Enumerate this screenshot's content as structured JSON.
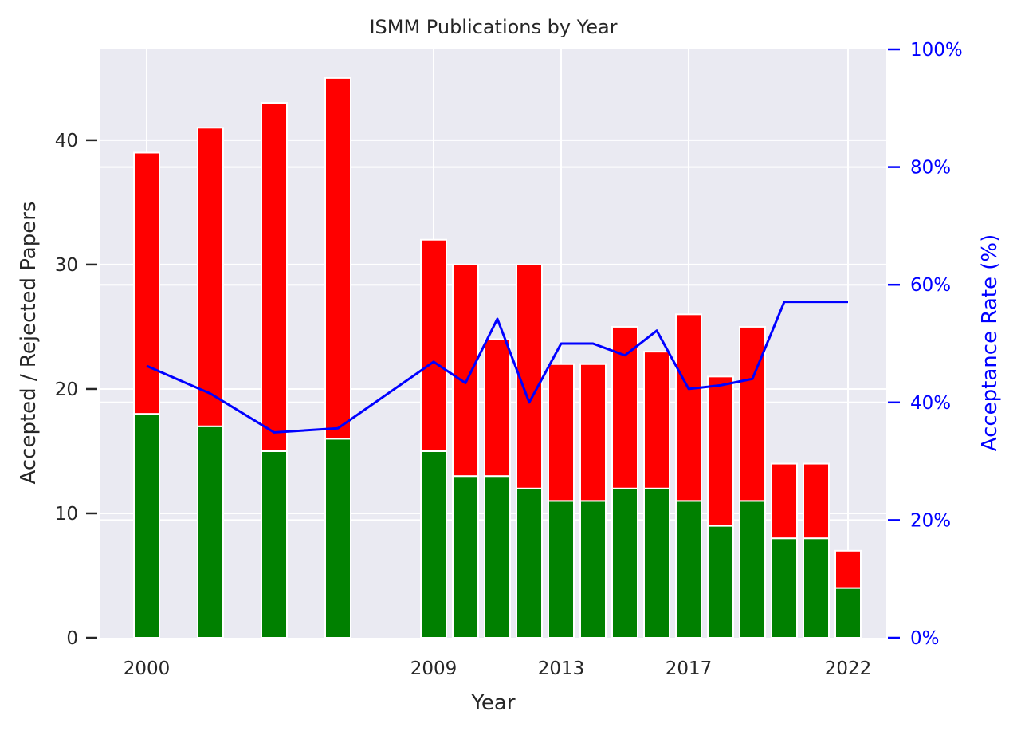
{
  "chart_data": {
    "type": "bar",
    "title": "ISMM Publications by Year",
    "xlabel": "Year",
    "ylabel": "Accepted / Rejected Papers",
    "y2label": "Acceptance Rate (%)",
    "x": [
      2000,
      2002,
      2004,
      2006,
      2009,
      2010,
      2011,
      2012,
      2013,
      2014,
      2015,
      2016,
      2017,
      2018,
      2019,
      2020,
      2021,
      2022
    ],
    "xticks": [
      2000,
      2009,
      2013,
      2017,
      2022
    ],
    "xlim": [
      1998.55,
      2023.2
    ],
    "ylim": [
      0,
      47.3
    ],
    "yticks": [
      0,
      10,
      20,
      30,
      40
    ],
    "y2lim": [
      0,
      100
    ],
    "y2ticks": [
      "0%",
      "20%",
      "40%",
      "60%",
      "80%",
      "100%"
    ],
    "y2tick_values": [
      0,
      20,
      40,
      60,
      80,
      100
    ],
    "series": [
      {
        "role": "accepted",
        "color": "#008000",
        "values": [
          18,
          17,
          15,
          16,
          15,
          13,
          13,
          12,
          11,
          11,
          12,
          12,
          11,
          9,
          11,
          8,
          8,
          4
        ]
      },
      {
        "role": "rejected",
        "color": "#ff0000",
        "values": [
          21,
          24,
          28,
          29,
          17,
          17,
          11,
          18,
          11,
          11,
          13,
          11,
          15,
          12,
          14,
          6,
          6,
          3
        ]
      },
      {
        "role": "acceptance-rate",
        "axis": "right",
        "color": "#0000ff",
        "type": "line",
        "x": [
          2000,
          2002,
          2004,
          2006,
          2009,
          2010,
          2011,
          2012,
          2013,
          2014,
          2015,
          2016,
          2017,
          2018,
          2019,
          2020,
          2022
        ],
        "values": [
          46.2,
          41.5,
          34.9,
          35.6,
          46.9,
          43.3,
          54.2,
          40.0,
          50.0,
          50.0,
          48.0,
          52.2,
          42.3,
          42.9,
          44.0,
          57.1,
          57.1
        ]
      }
    ],
    "grid": true,
    "legend": "none",
    "colors": {
      "plot_bg": "#eaeaf2",
      "grid": "#ffffff",
      "right_axis": "#0000ff",
      "text": "#262626"
    }
  }
}
